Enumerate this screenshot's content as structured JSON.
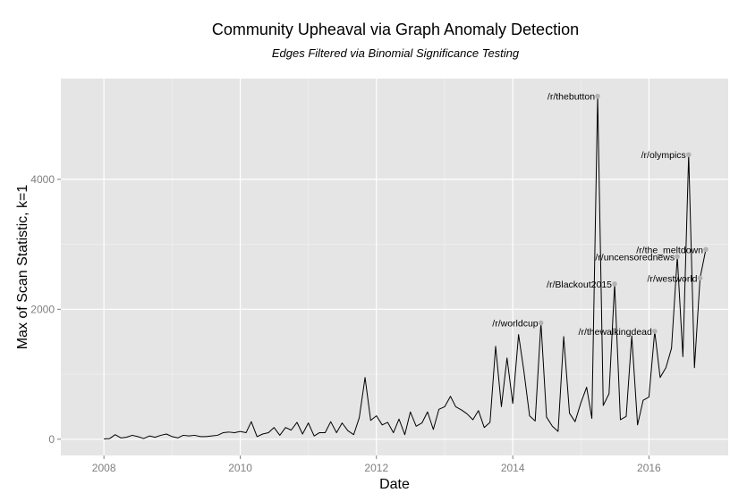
{
  "chart_data": {
    "type": "line",
    "title": "Community Upheaval via Graph Anomaly Detection",
    "subtitle": "Edges Filtered via Binomial Significance Testing",
    "xlabel": "Date",
    "ylabel": "Max of Scan Statistic, k=1",
    "xlim": [
      "2007-05-15",
      "2017-03-01"
    ],
    "ylim": [
      -250,
      5550
    ],
    "x_ticks": [
      "2008-01-01",
      "2010-01-01",
      "2012-01-01",
      "2014-01-01",
      "2016-01-01"
    ],
    "x_tick_labels": [
      "2008",
      "2010",
      "2012",
      "2014",
      "2016"
    ],
    "y_ticks": [
      0,
      2000,
      4000
    ],
    "y_tick_labels": [
      "0",
      "2000",
      "4000"
    ],
    "grid": true,
    "legend": "none",
    "line_color": "#000000",
    "background_color": "#e5e5e5",
    "grid_color": "#ffffff",
    "point_color": "#b3b3b3",
    "series": [
      {
        "x": [
          "2008-01",
          "2008-02",
          "2008-03",
          "2008-04",
          "2008-05",
          "2008-06",
          "2008-07",
          "2008-08",
          "2008-09",
          "2008-10",
          "2008-11",
          "2008-12",
          "2009-01",
          "2009-02",
          "2009-03",
          "2009-04",
          "2009-05",
          "2009-06",
          "2009-07",
          "2009-08",
          "2009-09",
          "2009-10",
          "2009-11",
          "2009-12",
          "2010-01",
          "2010-02",
          "2010-03",
          "2010-04",
          "2010-05",
          "2010-06",
          "2010-07",
          "2010-08",
          "2010-09",
          "2010-10",
          "2010-11",
          "2010-12",
          "2011-01",
          "2011-02",
          "2011-03",
          "2011-04",
          "2011-05",
          "2011-06",
          "2011-07",
          "2011-08",
          "2011-09",
          "2011-10",
          "2011-11",
          "2011-12",
          "2012-01",
          "2012-02",
          "2012-03",
          "2012-04",
          "2012-05",
          "2012-06",
          "2012-07",
          "2012-08",
          "2012-09",
          "2012-10",
          "2012-11",
          "2012-12",
          "2013-01",
          "2013-02",
          "2013-03",
          "2013-04",
          "2013-05",
          "2013-06",
          "2013-07",
          "2013-08",
          "2013-09",
          "2013-10",
          "2013-11",
          "2013-12",
          "2014-01",
          "2014-02",
          "2014-03",
          "2014-04",
          "2014-05",
          "2014-06",
          "2014-07",
          "2014-08",
          "2014-09",
          "2014-10",
          "2014-11",
          "2014-12",
          "2015-01",
          "2015-02",
          "2015-03",
          "2015-04",
          "2015-05",
          "2015-06",
          "2015-07",
          "2015-08",
          "2015-09",
          "2015-10",
          "2015-11",
          "2015-12",
          "2016-01",
          "2016-02",
          "2016-03",
          "2016-04",
          "2016-05",
          "2016-06",
          "2016-07",
          "2016-08",
          "2016-09",
          "2016-10",
          "2016-11"
        ],
        "values": [
          5,
          10,
          70,
          20,
          30,
          60,
          40,
          10,
          50,
          30,
          60,
          80,
          40,
          20,
          60,
          50,
          60,
          40,
          40,
          50,
          60,
          100,
          110,
          100,
          120,
          100,
          270,
          40,
          80,
          100,
          180,
          60,
          180,
          140,
          260,
          80,
          250,
          50,
          100,
          100,
          270,
          100,
          250,
          130,
          70,
          330,
          950,
          290,
          360,
          220,
          260,
          100,
          310,
          70,
          420,
          200,
          250,
          420,
          150,
          460,
          500,
          660,
          500,
          450,
          390,
          300,
          440,
          180,
          260,
          1430,
          500,
          1250,
          550,
          1610,
          1060,
          360,
          280,
          1790,
          340,
          200,
          120,
          1580,
          400,
          270,
          560,
          800,
          320,
          5280,
          520,
          700,
          2390,
          300,
          350,
          1590,
          220,
          600,
          650,
          1660,
          950,
          1100,
          1400,
          2810,
          1270,
          4380,
          1100,
          2480,
          2920
        ]
      }
    ],
    "annotations": [
      {
        "label": "/r/worldcup",
        "x": "2014-06",
        "y": 1790
      },
      {
        "label": "/r/thebutton",
        "x": "2015-04",
        "y": 5280
      },
      {
        "label": "/r/Blackout2015",
        "x": "2015-07",
        "y": 2390
      },
      {
        "label": "/r/thewalkingdead",
        "x": "2016-02",
        "y": 1660
      },
      {
        "label": "/r/uncensorednews",
        "x": "2016-06",
        "y": 2810
      },
      {
        "label": "/r/olympics",
        "x": "2016-08",
        "y": 4380
      },
      {
        "label": "/r/westworld",
        "x": "2016-10",
        "y": 2480
      },
      {
        "label": "/r/the_meltdown",
        "x": "2016-11",
        "y": 2920
      }
    ]
  }
}
